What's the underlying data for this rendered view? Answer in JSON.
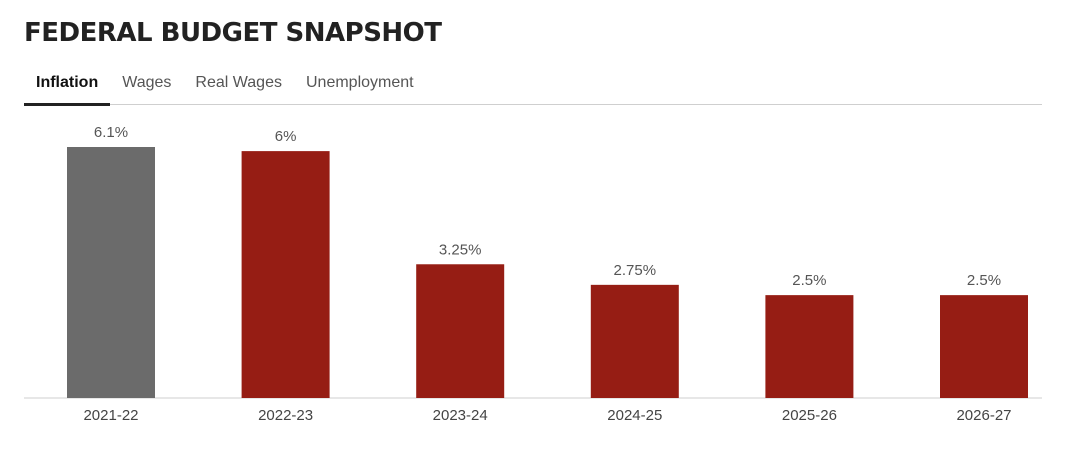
{
  "header": {
    "title": "FEDERAL BUDGET SNAPSHOT"
  },
  "tabs": [
    {
      "label": "Inflation",
      "active": true
    },
    {
      "label": "Wages",
      "active": false
    },
    {
      "label": "Real Wages",
      "active": false
    },
    {
      "label": "Unemployment",
      "active": false
    }
  ],
  "colors": {
    "actual": "#6b6b6b",
    "forecast": "#961d14"
  },
  "chart_data": {
    "type": "bar",
    "categories": [
      "2021-22",
      "2022-23",
      "2023-24",
      "2024-25",
      "2025-26",
      "2026-27"
    ],
    "values": [
      6.1,
      6,
      3.25,
      2.75,
      2.5,
      2.5
    ],
    "value_labels": [
      "6.1%",
      "6%",
      "3.25%",
      "2.75%",
      "2.5%",
      "2.5%"
    ],
    "bar_colors": [
      "#6b6b6b",
      "#961d14",
      "#961d14",
      "#961d14",
      "#961d14",
      "#961d14"
    ],
    "ylim": [
      0,
      6.1
    ],
    "grid": false
  }
}
